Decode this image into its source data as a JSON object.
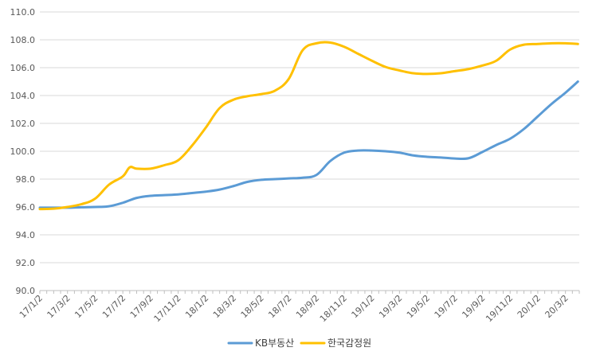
{
  "chart_data": {
    "type": "line",
    "title": "",
    "xlabel": "",
    "ylabel": "",
    "ylim": [
      90.0,
      110.0
    ],
    "yticks": [
      "90.0",
      "92.0",
      "94.0",
      "96.0",
      "98.0",
      "100.0",
      "102.0",
      "104.0",
      "106.0",
      "108.0",
      "110.0"
    ],
    "xticks": [
      "17/1/2",
      "17/3/2",
      "17/5/2",
      "17/7/2",
      "17/9/2",
      "17/11/2",
      "18/1/2",
      "18/3/2",
      "18/5/2",
      "18/7/2",
      "18/9/2",
      "18/11/2",
      "19/1/2",
      "19/3/2",
      "19/5/2",
      "19/7/2",
      "19/9/2",
      "19/11/2",
      "20/1/2",
      "20/3/2"
    ],
    "grid": true,
    "legend_position": "bottom",
    "series": [
      {
        "name": "KB부동산",
        "color": "#5B9BD5",
        "x": [
          0,
          1,
          2,
          3,
          4,
          5,
          6,
          7,
          8,
          9,
          10,
          11,
          12,
          13,
          14,
          15,
          16,
          17,
          18,
          19,
          20,
          21,
          22,
          23,
          24,
          25,
          26,
          27,
          28,
          29,
          30,
          31,
          32,
          33,
          34,
          35,
          36,
          37,
          38,
          38.9
        ],
        "values": [
          95.95,
          95.95,
          95.95,
          95.98,
          96.0,
          96.05,
          96.3,
          96.65,
          96.8,
          96.85,
          96.9,
          97.0,
          97.1,
          97.25,
          97.5,
          97.8,
          97.95,
          98.0,
          98.05,
          98.1,
          98.3,
          99.3,
          99.9,
          100.05,
          100.05,
          100.0,
          99.9,
          99.7,
          99.6,
          99.55,
          99.48,
          99.5,
          99.95,
          100.45,
          100.9,
          101.6,
          102.5,
          103.4,
          104.2,
          105.0
        ]
      },
      {
        "name": "한국감정원",
        "color": "#FFC000",
        "x": [
          0,
          1,
          2,
          3,
          4,
          5,
          6,
          6.5,
          7,
          8,
          9,
          10,
          11,
          12,
          13,
          14,
          15,
          16,
          17,
          18,
          19,
          20,
          21,
          22,
          23,
          24,
          25,
          26,
          27,
          28,
          29,
          30,
          31,
          32,
          33,
          34,
          35,
          36,
          37,
          38,
          38.9
        ],
        "values": [
          95.85,
          95.88,
          96.0,
          96.2,
          96.6,
          97.6,
          98.2,
          98.85,
          98.75,
          98.75,
          99.0,
          99.35,
          100.4,
          101.7,
          103.1,
          103.7,
          103.95,
          104.1,
          104.35,
          105.2,
          107.25,
          107.75,
          107.8,
          107.5,
          107.0,
          106.5,
          106.05,
          105.8,
          105.6,
          105.55,
          105.6,
          105.75,
          105.9,
          106.15,
          106.5,
          107.3,
          107.65,
          107.7,
          107.75,
          107.75,
          107.7
        ]
      }
    ]
  }
}
